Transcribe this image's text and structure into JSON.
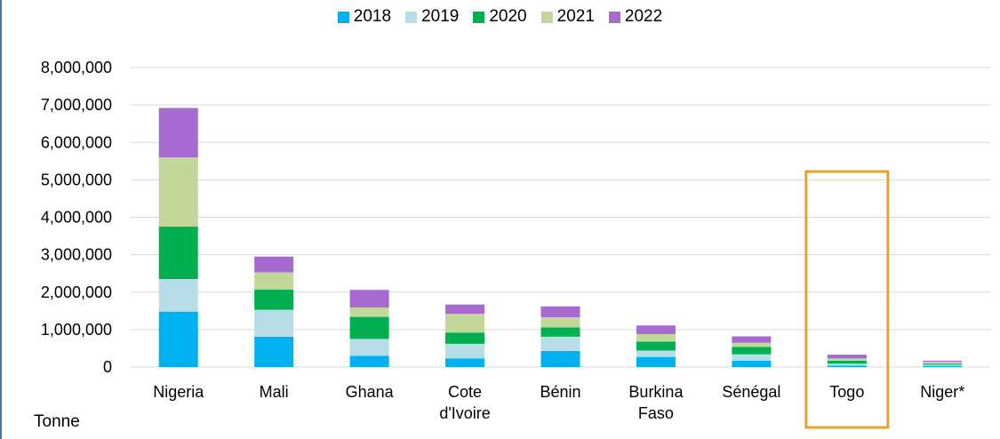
{
  "chart_data": {
    "type": "bar",
    "stacked": true,
    "categories": [
      "Nigeria",
      "Mali",
      "Ghana",
      "Cote d'Ivoire",
      "Bénin",
      "Burkina Faso",
      "Sénégal",
      "Togo",
      "Niger*"
    ],
    "series": [
      {
        "name": "2018",
        "color": "#00b0f0",
        "values": [
          1480000,
          810000,
          300000,
          230000,
          430000,
          270000,
          170000,
          40000,
          30000
        ]
      },
      {
        "name": "2019",
        "color": "#b7dee8",
        "values": [
          870000,
          720000,
          450000,
          390000,
          380000,
          170000,
          170000,
          50000,
          30000
        ]
      },
      {
        "name": "2020",
        "color": "#00b050",
        "values": [
          1400000,
          540000,
          590000,
          300000,
          250000,
          240000,
          200000,
          80000,
          30000
        ]
      },
      {
        "name": "2021",
        "color": "#c4d79b",
        "values": [
          1850000,
          460000,
          250000,
          500000,
          270000,
          200000,
          110000,
          60000,
          50000
        ]
      },
      {
        "name": "2022",
        "color": "#a66ad0",
        "values": [
          1320000,
          420000,
          470000,
          250000,
          290000,
          230000,
          170000,
          100000,
          30000
        ]
      }
    ],
    "ylim": [
      0,
      8000000
    ],
    "yticks": [
      "0",
      "1,000,000",
      "2,000,000",
      "3,000,000",
      "4,000,000",
      "5,000,000",
      "6,000,000",
      "7,000,000",
      "8,000,000"
    ],
    "ylabel": "Tonne",
    "grid": true,
    "legend": "top-center",
    "highlight": {
      "category": "Togo",
      "color": "#e8a32a"
    }
  }
}
